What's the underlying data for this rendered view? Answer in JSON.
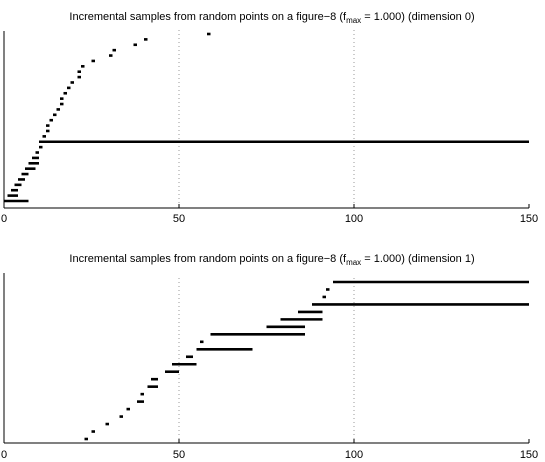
{
  "chart_data": [
    {
      "type": "barcode",
      "title": "Incremental samples from random points on a figure−8 (f",
      "title_sub": "max",
      "title_tail": " = 1.000) (dimension 0)",
      "xlim": [
        0,
        150
      ],
      "xticks": [
        0,
        50,
        100,
        150
      ],
      "xtick_labels": [
        "0",
        "50",
        "100",
        "150"
      ],
      "grid": "vertical dotted at 50 and 100",
      "bars": [
        [
          0,
          7
        ],
        [
          1,
          4
        ],
        [
          2,
          4
        ],
        [
          3,
          5
        ],
        [
          4,
          6
        ],
        [
          5,
          7
        ],
        [
          6,
          9
        ],
        [
          7,
          10
        ],
        [
          8,
          10
        ],
        [
          9,
          10
        ],
        [
          10,
          11
        ],
        [
          10,
          150
        ],
        [
          11,
          12
        ],
        [
          12,
          13
        ],
        [
          12,
          13
        ],
        [
          13,
          14
        ],
        [
          14,
          15
        ],
        [
          15,
          16
        ],
        [
          16,
          17
        ],
        [
          16,
          17
        ],
        [
          17,
          18
        ],
        [
          18,
          19
        ],
        [
          19,
          20
        ],
        [
          21,
          22
        ],
        [
          21,
          22
        ],
        [
          22,
          23
        ],
        [
          25,
          26
        ],
        [
          30,
          31
        ],
        [
          31,
          32
        ],
        [
          37,
          38
        ],
        [
          40,
          41
        ],
        [
          58,
          59
        ]
      ]
    },
    {
      "type": "barcode",
      "title": "Incremental samples from random points on a figure−8 (f",
      "title_sub": "max",
      "title_tail": " = 1.000) (dimension 1)",
      "xlim": [
        0,
        150
      ],
      "xticks": [
        0,
        50,
        100,
        150
      ],
      "xtick_labels": [
        "0",
        "50",
        "100",
        "150"
      ],
      "grid": "vertical dotted at 50 and 100",
      "bars": [
        [
          23,
          24
        ],
        [
          25,
          26
        ],
        [
          29,
          30
        ],
        [
          33,
          34
        ],
        [
          35,
          36
        ],
        [
          38,
          40
        ],
        [
          39,
          40
        ],
        [
          41,
          44
        ],
        [
          42,
          44
        ],
        [
          46,
          50
        ],
        [
          48,
          55
        ],
        [
          52,
          54
        ],
        [
          55,
          71
        ],
        [
          56,
          57
        ],
        [
          59,
          86
        ],
        [
          75,
          86
        ],
        [
          79,
          91
        ],
        [
          84,
          91
        ],
        [
          88,
          150
        ],
        [
          91,
          92
        ],
        [
          92,
          93
        ],
        [
          94,
          150
        ]
      ]
    }
  ]
}
